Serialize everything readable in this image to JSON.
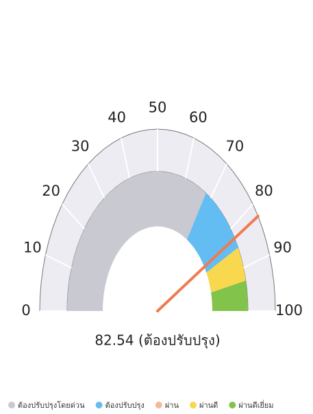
{
  "chart_data": {
    "type": "gauge",
    "value": 82.54,
    "value_label": "82.54 (ต้องปรับปรุง)",
    "ylim": [
      0,
      100
    ],
    "yticks": [
      0,
      10,
      20,
      30,
      40,
      50,
      60,
      70,
      80,
      90,
      100
    ],
    "needle_color": "#ef7b4f",
    "series": [
      {
        "name": "ต้องปรับปรุงโดยด่วน",
        "color": "#c9c9d2",
        "values": [
          0,
          68
        ]
      },
      {
        "name": "ต้องปรับปรุง",
        "color": "#63bdf2",
        "values": [
          68,
          85
        ]
      },
      {
        "name": "ผ่าน",
        "color": "#f4b99c",
        "values": [
          null,
          null
        ]
      },
      {
        "name": "ผ่านดี",
        "color": "#f8d84f",
        "values": [
          85,
          93
        ]
      },
      {
        "name": "ผ่านดีเยี่ยม",
        "color": "#82c34c",
        "values": [
          93,
          100
        ]
      }
    ]
  }
}
